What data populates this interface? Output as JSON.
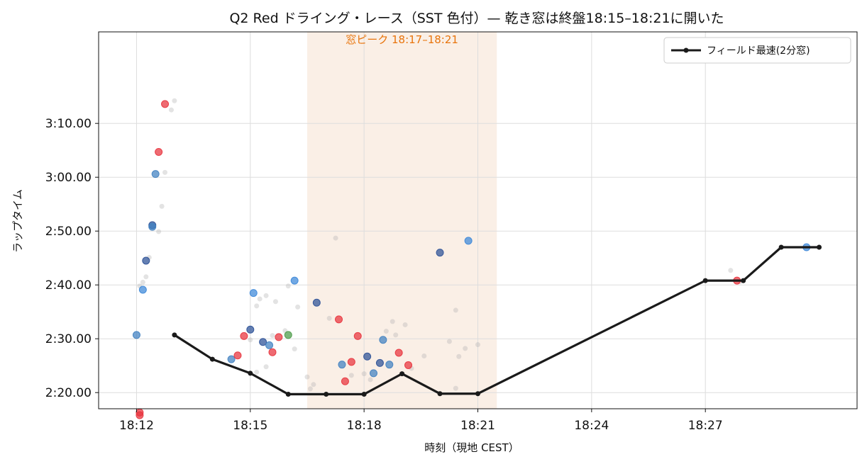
{
  "chart_data": {
    "type": "scatter",
    "title": "Q2 Red ドライング・レース（SST 色付）— 乾き窓は終盤18:15–18:21に開いた",
    "xlabel": "時刻（現地 CEST）",
    "ylabel": "ラップタイム",
    "grid": true,
    "legend_position": "top-right",
    "xlim": [
      "18:11:00",
      "18:31:00"
    ],
    "ylim": [
      137,
      207
    ],
    "x_ticks": [
      "18:12",
      "18:15",
      "18:18",
      "18:21",
      "18:24",
      "18:27"
    ],
    "y_ticks": [
      {
        "value": 140,
        "label": "2:20.00"
      },
      {
        "value": 150,
        "label": "2:30.00"
      },
      {
        "value": 160,
        "label": "2:40.00"
      },
      {
        "value": 170,
        "label": "2:50.00"
      },
      {
        "value": 180,
        "label": "3:00.00"
      },
      {
        "value": 190,
        "label": "3:10.00"
      }
    ],
    "annotation": {
      "label": "窓ピーク 18:17–18:21",
      "x_start": "18:16:30",
      "x_end": "18:21:30",
      "color": "#f4dcc8"
    },
    "colors": {
      "red": "#e8323c",
      "blue": "#3a86d8",
      "navy": "#2a4f96",
      "steel": "#3f7fc0",
      "green": "#4a9a46",
      "gray": "#b0b0b0",
      "line": "#1a1a1a"
    },
    "series": [
      {
        "name": "フィールド最速(2分窓)",
        "kind": "line",
        "points": [
          [
            "18:13:00",
            150.7
          ],
          [
            "18:14:00",
            146.2
          ],
          [
            "18:15:00",
            143.6
          ],
          [
            "18:16:00",
            139.7
          ],
          [
            "18:17:00",
            139.7
          ],
          [
            "18:18:00",
            139.7
          ],
          [
            "18:19:00",
            143.5
          ],
          [
            "18:20:00",
            139.8
          ],
          [
            "18:21:00",
            139.8
          ],
          [
            "18:27:00",
            160.8
          ],
          [
            "18:28:00",
            160.8
          ],
          [
            "18:29:00",
            167.0
          ],
          [
            "18:30:00",
            167.0
          ]
        ]
      },
      {
        "kind": "scatter",
        "points": [
          [
            "18:12:00",
            150.7,
            "steel"
          ],
          [
            "18:12:05",
            136.3,
            "red"
          ],
          [
            "18:12:05",
            135.8,
            "red"
          ],
          [
            "18:12:10",
            159.1,
            "blue"
          ],
          [
            "18:12:15",
            164.5,
            "navy"
          ],
          [
            "18:12:25",
            171.1,
            "navy"
          ],
          [
            "18:12:25",
            170.8,
            "steel"
          ],
          [
            "18:12:30",
            180.6,
            "steel"
          ],
          [
            "18:12:35",
            184.7,
            "red"
          ],
          [
            "18:12:45",
            193.6,
            "red"
          ],
          [
            "18:14:30",
            146.2,
            "steel"
          ],
          [
            "18:14:40",
            146.9,
            "red"
          ],
          [
            "18:14:50",
            150.5,
            "red"
          ],
          [
            "18:15:00",
            151.7,
            "navy"
          ],
          [
            "18:15:05",
            158.5,
            "blue"
          ],
          [
            "18:15:20",
            149.4,
            "navy"
          ],
          [
            "18:15:30",
            148.8,
            "steel"
          ],
          [
            "18:15:35",
            147.5,
            "red"
          ],
          [
            "18:15:45",
            150.3,
            "red"
          ],
          [
            "18:16:00",
            150.7,
            "green"
          ],
          [
            "18:16:10",
            160.8,
            "blue"
          ],
          [
            "18:16:45",
            156.7,
            "navy"
          ],
          [
            "18:17:20",
            153.6,
            "red"
          ],
          [
            "18:17:25",
            145.2,
            "steel"
          ],
          [
            "18:17:30",
            142.1,
            "red"
          ],
          [
            "18:17:40",
            145.7,
            "red"
          ],
          [
            "18:17:50",
            150.5,
            "red"
          ],
          [
            "18:18:05",
            146.7,
            "navy"
          ],
          [
            "18:18:15",
            143.6,
            "steel"
          ],
          [
            "18:18:25",
            145.5,
            "navy"
          ],
          [
            "18:18:30",
            149.8,
            "steel"
          ],
          [
            "18:18:40",
            145.2,
            "steel"
          ],
          [
            "18:18:55",
            147.4,
            "red"
          ],
          [
            "18:19:10",
            145.1,
            "red"
          ],
          [
            "18:20:00",
            166.0,
            "navy"
          ],
          [
            "18:20:45",
            168.2,
            "blue"
          ],
          [
            "18:27:50",
            160.8,
            "red"
          ],
          [
            "18:29:40",
            167.0,
            "blue"
          ]
        ]
      },
      {
        "kind": "scatter-faint",
        "points": [
          [
            "18:12:05",
            159.8
          ],
          [
            "18:12:10",
            160.5
          ],
          [
            "18:12:15",
            161.5
          ],
          [
            "18:12:20",
            165.1
          ],
          [
            "18:12:35",
            169.9
          ],
          [
            "18:12:40",
            174.6
          ],
          [
            "18:12:45",
            180.9
          ],
          [
            "18:12:55",
            192.5
          ],
          [
            "18:13:00",
            194.2
          ],
          [
            "18:15:10",
            156.1
          ],
          [
            "18:15:15",
            157.4
          ],
          [
            "18:15:25",
            158.0
          ],
          [
            "18:15:40",
            156.9
          ],
          [
            "18:16:00",
            159.8
          ],
          [
            "18:16:10",
            148.1
          ],
          [
            "18:16:15",
            155.9
          ],
          [
            "18:15:55",
            151.5
          ],
          [
            "18:15:35",
            150.6
          ],
          [
            "18:15:10",
            143.8
          ],
          [
            "18:15:25",
            144.8
          ],
          [
            "18:16:30",
            142.9
          ],
          [
            "18:16:40",
            141.5
          ],
          [
            "18:16:35",
            140.7
          ],
          [
            "18:17:05",
            153.8
          ],
          [
            "18:17:15",
            168.7
          ],
          [
            "18:17:40",
            143.2
          ],
          [
            "18:18:00",
            143.5
          ],
          [
            "18:18:10",
            142.4
          ],
          [
            "18:18:35",
            151.4
          ],
          [
            "18:18:45",
            153.2
          ],
          [
            "18:18:50",
            150.7
          ],
          [
            "18:19:05",
            152.6
          ],
          [
            "18:19:15",
            144.5
          ],
          [
            "18:19:35",
            146.8
          ],
          [
            "18:20:15",
            149.5
          ],
          [
            "18:20:25",
            155.3
          ],
          [
            "18:20:30",
            146.7
          ],
          [
            "18:20:40",
            148.2
          ],
          [
            "18:21:00",
            148.9
          ],
          [
            "18:20:25",
            140.8
          ],
          [
            "18:27:40",
            162.7
          ],
          [
            "18:27:55",
            160.6
          ],
          [
            "18:15:00",
            149.8
          ]
        ]
      }
    ]
  }
}
